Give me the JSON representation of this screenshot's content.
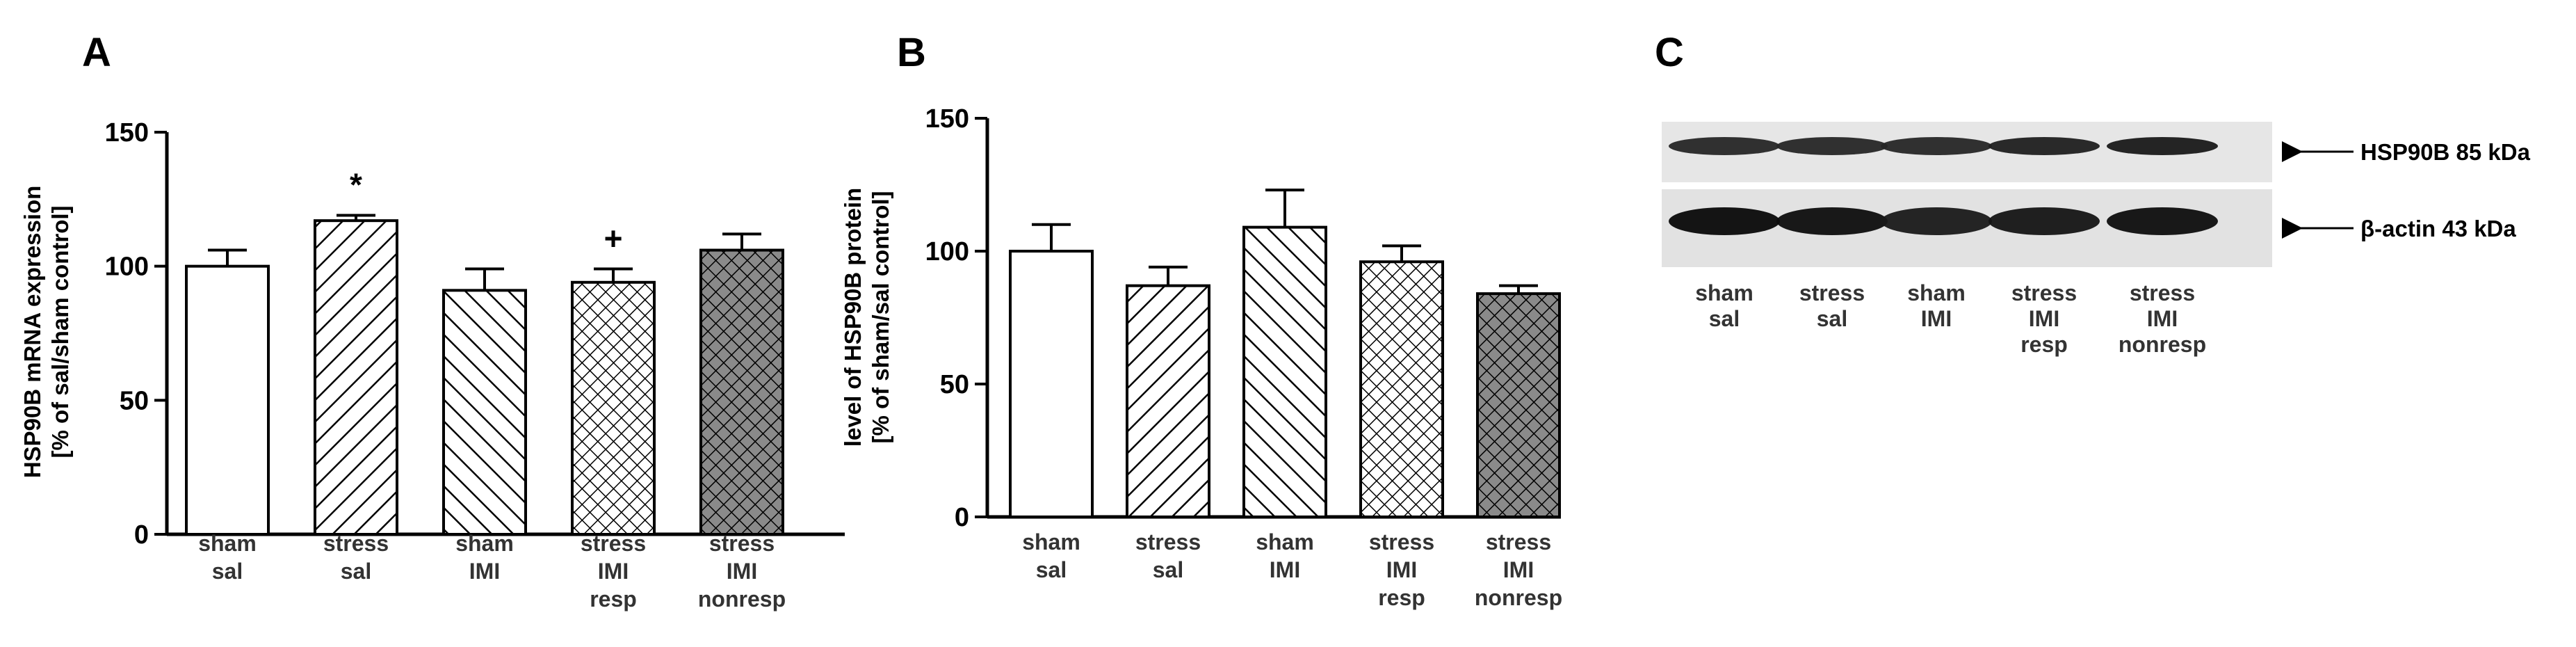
{
  "chart_data": [
    {
      "panel": "A",
      "type": "bar",
      "ylabel": [
        "HSP90B mRNA expression",
        "[% of sal/sham control]"
      ],
      "ylim": [
        0,
        150
      ],
      "yticks": [
        0,
        50,
        100,
        150
      ],
      "categories": [
        [
          "sham",
          "sal"
        ],
        [
          "stress",
          "sal"
        ],
        [
          "sham",
          "IMI"
        ],
        [
          "stress",
          "IMI",
          "resp"
        ],
        [
          "stress",
          "IMI",
          "nonresp"
        ]
      ],
      "values": [
        100,
        117,
        91,
        94,
        106
      ],
      "errors": [
        6,
        2,
        8,
        5,
        6
      ],
      "patterns": [
        "white",
        "diag-right",
        "diag-left",
        "crosshatch",
        "crosshatch-dark"
      ],
      "annotations": [
        "",
        "*",
        "",
        "+",
        ""
      ]
    },
    {
      "panel": "B",
      "type": "bar",
      "ylabel": [
        "level of HSP90B protein",
        "[% of sham/sal control]"
      ],
      "ylim": [
        0,
        150
      ],
      "yticks": [
        0,
        50,
        100,
        150
      ],
      "categories": [
        [
          "sham",
          "sal"
        ],
        [
          "stress",
          "sal"
        ],
        [
          "sham",
          "IMI"
        ],
        [
          "stress",
          "IMI",
          "resp"
        ],
        [
          "stress",
          "IMI",
          "nonresp"
        ]
      ],
      "values": [
        100,
        87,
        109,
        96,
        84
      ],
      "errors": [
        10,
        7,
        14,
        6,
        3
      ],
      "patterns": [
        "white",
        "diag-right",
        "diag-left",
        "crosshatch",
        "crosshatch-dark"
      ],
      "annotations": [
        "",
        "",
        "",
        "",
        ""
      ]
    }
  ],
  "panel_c": {
    "letter": "C",
    "bands": [
      {
        "label": "HSP90B 85 kDa",
        "intensity": [
          0.85,
          0.85,
          0.85,
          0.88,
          0.9
        ]
      },
      {
        "label": "β-actin 43 kDa",
        "intensity": [
          0.97,
          0.95,
          0.9,
          0.92,
          0.95
        ]
      }
    ],
    "lanes": [
      [
        "sham",
        "sal"
      ],
      [
        "stress",
        "sal"
      ],
      [
        "sham",
        "IMI"
      ],
      [
        "stress",
        "IMI",
        "resp"
      ],
      [
        "stress",
        "IMI",
        "nonresp"
      ]
    ]
  },
  "colors": {
    "axis": "#000000",
    "bar_fill": "#ffffff",
    "dark_fill": "#8a8a8a",
    "blot_bg": "#e4e4e4",
    "band": "#1a1a1a"
  }
}
